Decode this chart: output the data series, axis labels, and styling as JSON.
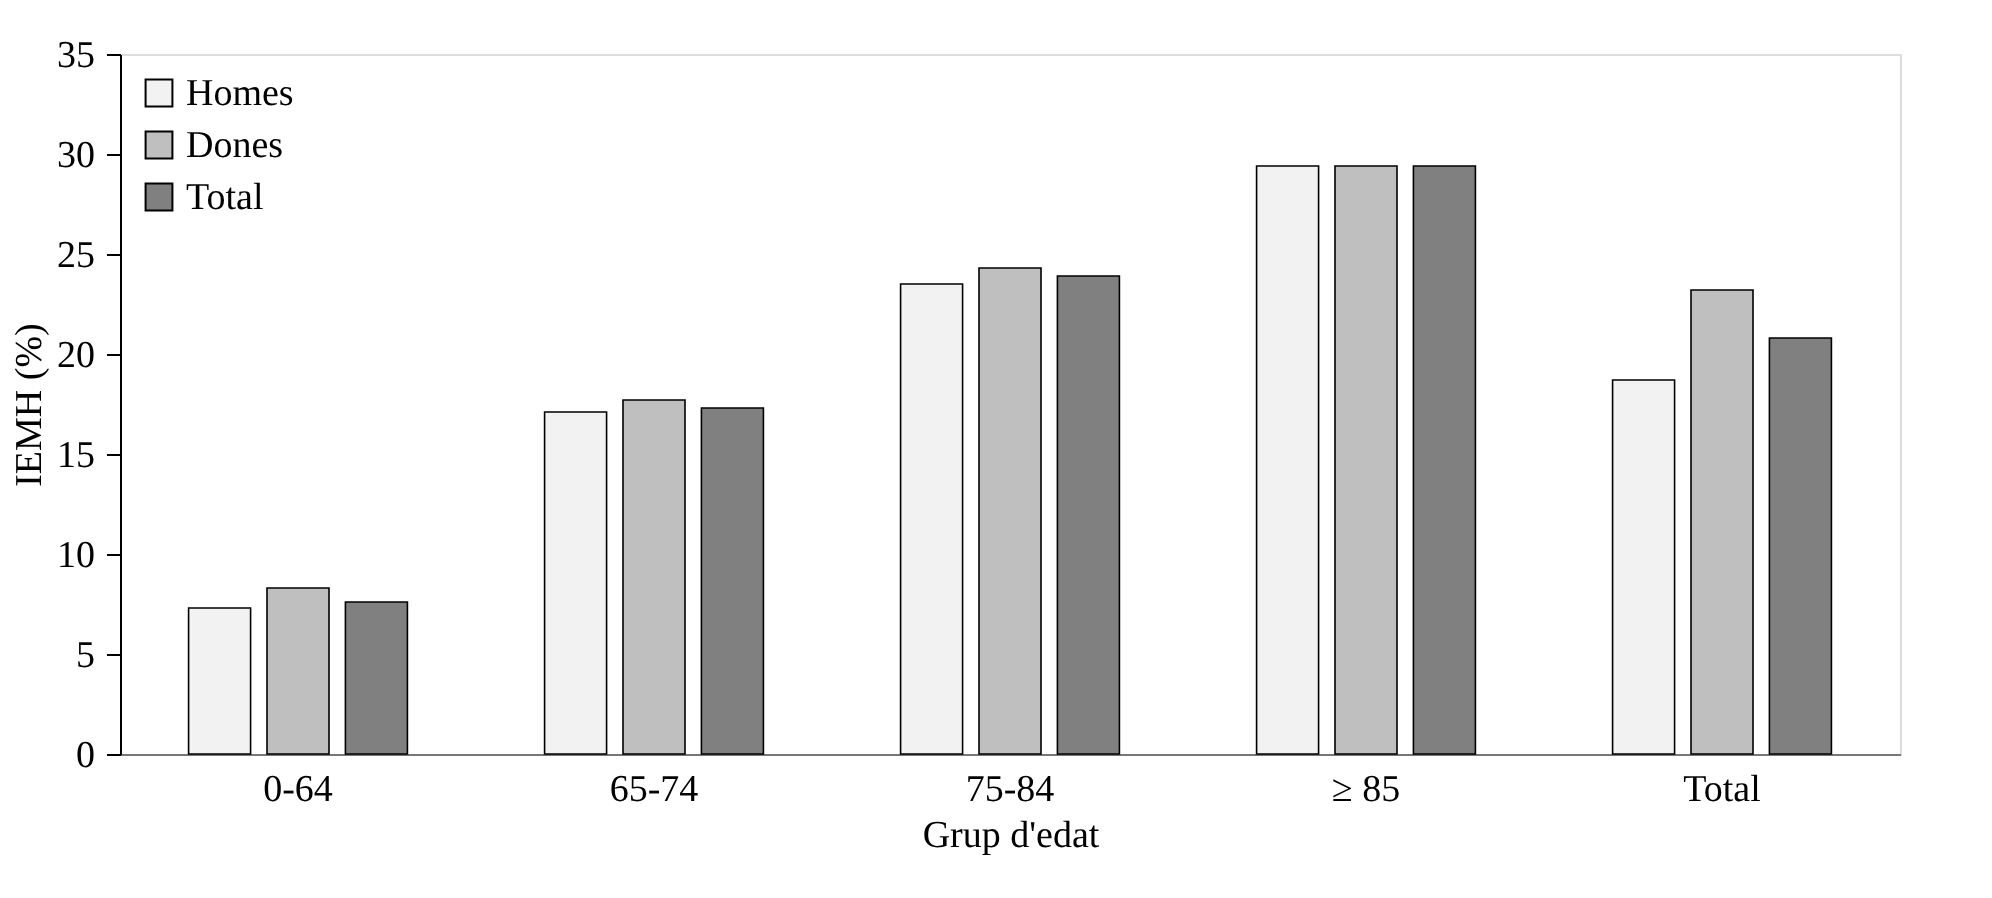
{
  "chart_data": {
    "type": "bar",
    "xlabel": "Grup d'edat",
    "ylabel": "IEMH (%)",
    "categories": [
      "0-64",
      "65-74",
      "75-84",
      "≥ 85",
      "Total"
    ],
    "series": [
      {
        "name": "Homes",
        "color": "#f2f2f2",
        "values": [
          7.3,
          17.1,
          23.5,
          29.4,
          18.7
        ]
      },
      {
        "name": "Dones",
        "color": "#bfbfbf",
        "values": [
          8.3,
          17.7,
          24.3,
          29.4,
          23.2
        ]
      },
      {
        "name": "Total",
        "color": "#808080",
        "values": [
          7.6,
          17.3,
          23.9,
          29.4,
          20.8
        ]
      }
    ],
    "ylim": [
      0,
      35
    ],
    "yticks": [
      0,
      5,
      10,
      15,
      20,
      25,
      30,
      35
    ],
    "grid": false,
    "legend": "top left"
  }
}
